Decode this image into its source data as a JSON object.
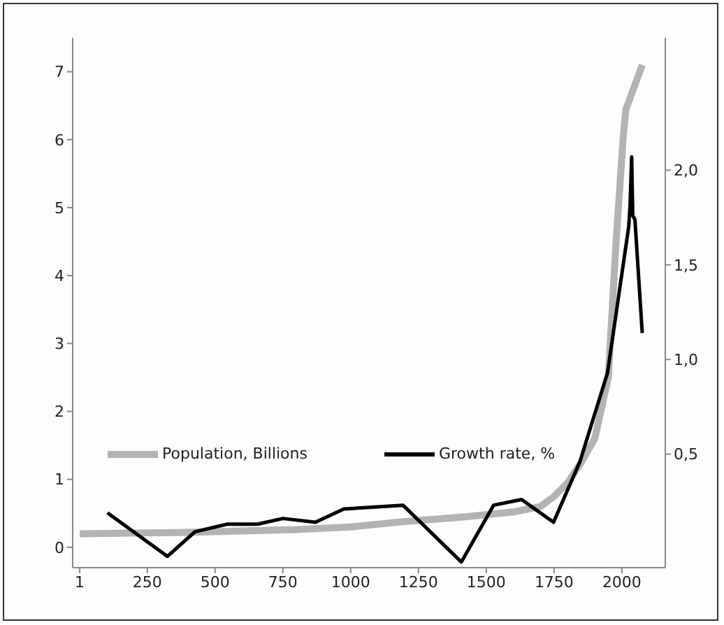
{
  "chart_data": {
    "type": "line",
    "xlim": [
      -25,
      2160
    ],
    "xticks": [
      1,
      250,
      500,
      750,
      1000,
      1250,
      1500,
      1750,
      2000
    ],
    "ylim": [
      -0.3,
      7.5
    ],
    "yticks": [
      0,
      1,
      2,
      3,
      4,
      5,
      6,
      7
    ],
    "y2lim": [
      -0.1,
      2.7
    ],
    "y2ticks": [
      {
        "value": 0.5,
        "label": "0,5"
      },
      {
        "value": 1,
        "label": "1,0"
      },
      {
        "value": 1.5,
        "label": "1,5"
      },
      {
        "value": 2,
        "label": "2,0"
      }
    ],
    "legend": "bottom",
    "marker": "none",
    "line_style": "solid",
    "series": [
      {
        "name": "Population, Billions",
        "color": "#b3b3b3",
        "x": [
          1,
          200,
          400,
          600,
          800,
          1000,
          1200,
          1400,
          1500,
          1600,
          1700,
          1750,
          1800,
          1850,
          1900,
          1950,
          1977,
          2005,
          2015,
          2075
        ],
        "values": [
          0.2,
          0.21,
          0.22,
          0.24,
          0.26,
          0.3,
          0.38,
          0.44,
          0.48,
          0.52,
          0.6,
          0.75,
          0.95,
          1.25,
          1.6,
          2.5,
          4.4,
          6.05,
          6.45,
          7.1
        ]
      },
      {
        "name": "Growth rate, %",
        "color": "#000000",
        "axis": "y2",
        "x": [
          103,
          324,
          426,
          545,
          657,
          750,
          870,
          975,
          1193,
          1408,
          1527,
          1630,
          1748,
          1845,
          1947,
          2025,
          2030,
          2036,
          2040,
          2048,
          2075
        ],
        "values": [
          0.19,
          -0.04,
          0.09,
          0.13,
          0.13,
          0.16,
          0.14,
          0.21,
          0.23,
          -0.07,
          0.23,
          0.26,
          0.14,
          0.46,
          0.93,
          1.7,
          1.81,
          2.07,
          1.76,
          1.74,
          1.14
        ]
      }
    ]
  }
}
